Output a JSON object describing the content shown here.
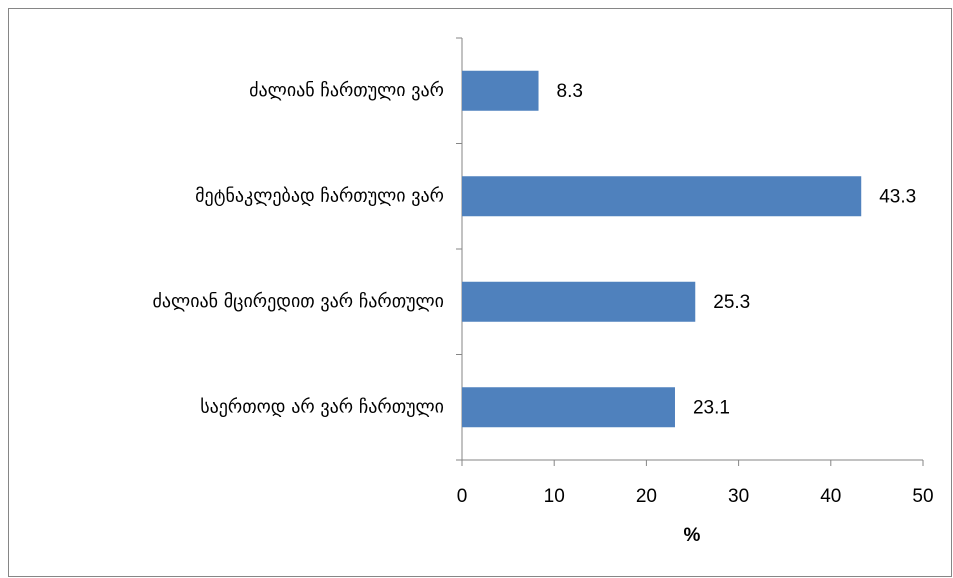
{
  "chart_data": {
    "type": "bar",
    "orientation": "horizontal",
    "categories": [
      "ძალიან ჩართული ვარ",
      "მეტნაკლებად ჩართული ვარ",
      "ძალიან მცირედით ვარ ჩართული",
      "საერთოდ არ ვარ ჩართული"
    ],
    "values": [
      8.3,
      43.3,
      25.3,
      23.1
    ],
    "color": "#4f81bd",
    "xlabel": "%",
    "xlim": [
      0,
      50
    ],
    "xticks": [
      0,
      10,
      20,
      30,
      40,
      50
    ],
    "grid": false
  }
}
